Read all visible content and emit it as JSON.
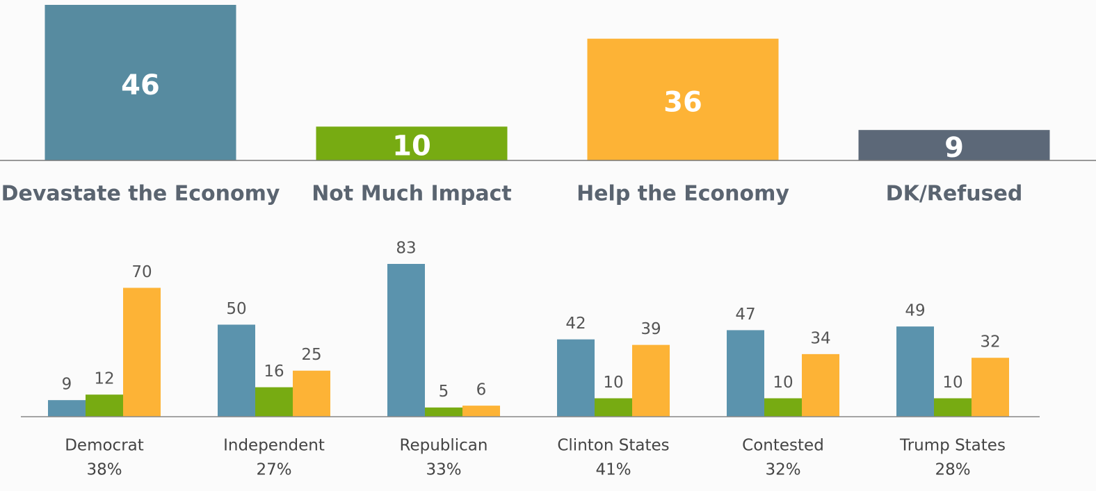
{
  "chart_data": [
    {
      "type": "bar",
      "categories": [
        "Devastate the Economy",
        "Not Much Impact",
        "Help the Economy",
        "DK/Refused"
      ],
      "values": [
        46,
        10,
        36,
        9
      ],
      "colors": [
        "#578ba0",
        "#77ab12",
        "#fdb336",
        "#5c6878"
      ],
      "ylim": [
        0,
        46
      ]
    },
    {
      "type": "grouped_bar",
      "categories": [
        "Democrat",
        "Independent",
        "Republican",
        "Clinton States",
        "Contested",
        "Trump States"
      ],
      "subcategories": [
        "38%",
        "27%",
        "33%",
        "41%",
        "32%",
        "28%"
      ],
      "series": [
        {
          "color": "#5b93ad",
          "values": [
            9,
            50,
            83,
            42,
            47,
            49
          ]
        },
        {
          "color": "#77ab12",
          "values": [
            12,
            16,
            5,
            10,
            10,
            10
          ]
        },
        {
          "color": "#fdb336",
          "values": [
            70,
            25,
            6,
            39,
            34,
            32
          ]
        }
      ],
      "ylim": [
        0,
        83
      ]
    }
  ]
}
